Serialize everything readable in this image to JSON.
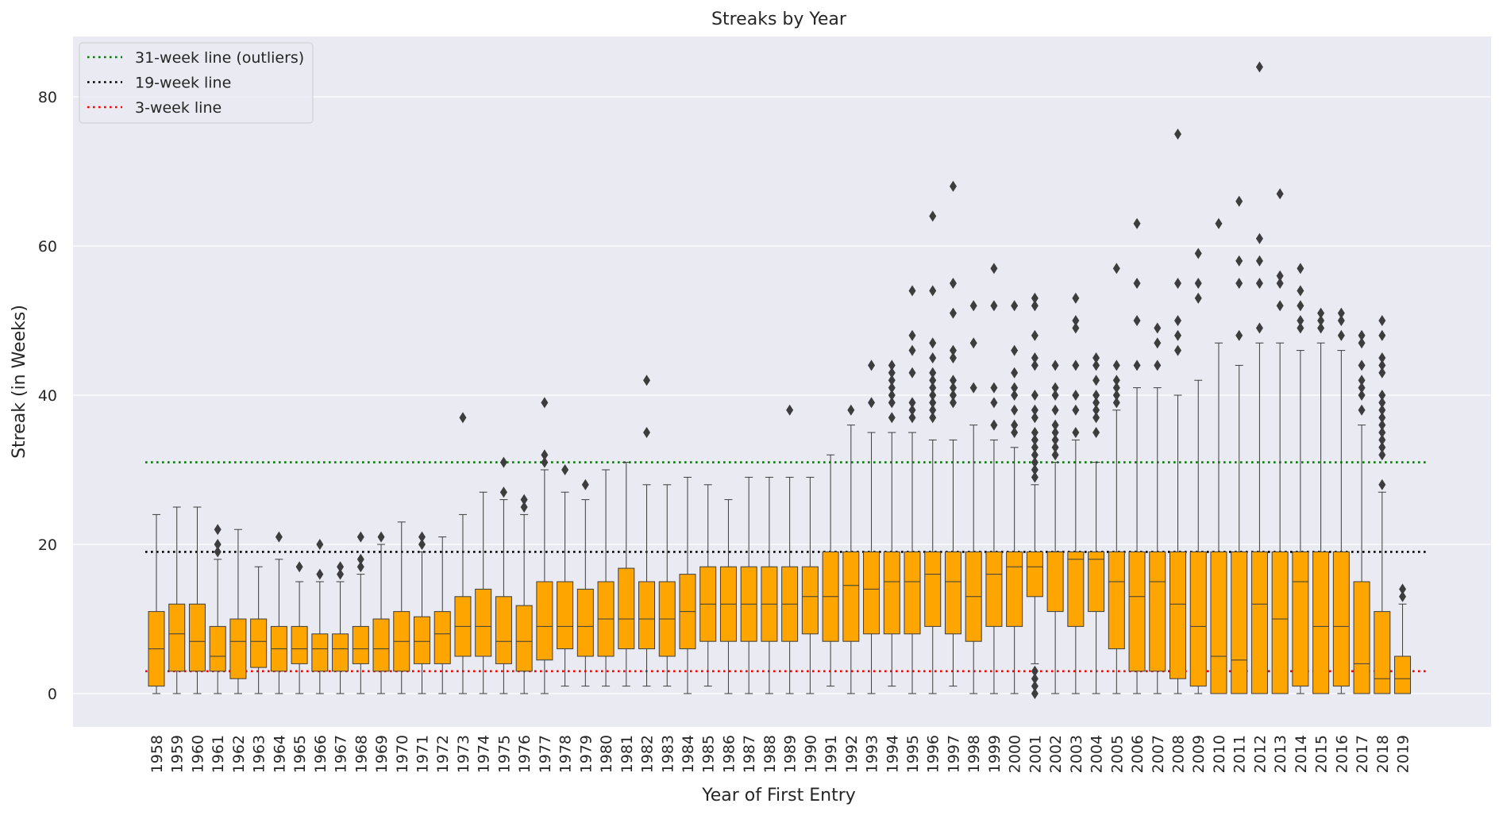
{
  "chart_data": {
    "type": "box",
    "title": "Streaks by Year",
    "xlabel": "Year of First Entry",
    "ylabel": "Streak (in Weeks)",
    "ylim": [
      -4,
      88
    ],
    "yticks": [
      0,
      20,
      40,
      60,
      80
    ],
    "grid": true,
    "legend_position": "top-left",
    "box_color": "#FFA500",
    "reference_lines": [
      {
        "label": "31-week line (outliers)",
        "y": 31,
        "color": "#008000",
        "style": "dotted"
      },
      {
        "label": "19-week line",
        "y": 19,
        "color": "#000000",
        "style": "dotted"
      },
      {
        "label": "3-week line",
        "y": 3,
        "color": "#FF0000",
        "style": "dotted"
      }
    ],
    "categories": [
      "1958",
      "1959",
      "1960",
      "1961",
      "1962",
      "1963",
      "1964",
      "1965",
      "1966",
      "1967",
      "1968",
      "1969",
      "1970",
      "1971",
      "1972",
      "1973",
      "1974",
      "1975",
      "1976",
      "1977",
      "1978",
      "1979",
      "1980",
      "1981",
      "1982",
      "1983",
      "1984",
      "1985",
      "1986",
      "1987",
      "1988",
      "1989",
      "1990",
      "1991",
      "1992",
      "1993",
      "1994",
      "1995",
      "1996",
      "1997",
      "1998",
      "1999",
      "2000",
      "2001",
      "2002",
      "2003",
      "2004",
      "2005",
      "2006",
      "2007",
      "2008",
      "2009",
      "2010",
      "2011",
      "2012",
      "2013",
      "2014",
      "2015",
      "2016",
      "2017",
      "2018",
      "2019"
    ],
    "boxes": [
      {
        "whisker_low": 0,
        "q1": 1,
        "median": 6,
        "q3": 11,
        "whisker_high": 24,
        "outliers": []
      },
      {
        "whisker_low": 0,
        "q1": 3,
        "median": 8,
        "q3": 12,
        "whisker_high": 25,
        "outliers": []
      },
      {
        "whisker_low": 0,
        "q1": 3,
        "median": 7,
        "q3": 12,
        "whisker_high": 25,
        "outliers": []
      },
      {
        "whisker_low": 0,
        "q1": 3,
        "median": 5,
        "q3": 9,
        "whisker_high": 18,
        "outliers": [
          19,
          20,
          22
        ]
      },
      {
        "whisker_low": 0,
        "q1": 2,
        "median": 7,
        "q3": 10,
        "whisker_high": 22,
        "outliers": []
      },
      {
        "whisker_low": 0,
        "q1": 3.5,
        "median": 7,
        "q3": 10,
        "whisker_high": 17,
        "outliers": []
      },
      {
        "whisker_low": 0,
        "q1": 3,
        "median": 6,
        "q3": 9,
        "whisker_high": 18,
        "outliers": [
          21
        ]
      },
      {
        "whisker_low": 0,
        "q1": 4,
        "median": 6,
        "q3": 9,
        "whisker_high": 15,
        "outliers": [
          17
        ]
      },
      {
        "whisker_low": 0,
        "q1": 3,
        "median": 6,
        "q3": 8,
        "whisker_high": 15,
        "outliers": [
          16,
          20
        ]
      },
      {
        "whisker_low": 0,
        "q1": 3,
        "median": 6,
        "q3": 8,
        "whisker_high": 15,
        "outliers": [
          16,
          17
        ]
      },
      {
        "whisker_low": 0,
        "q1": 4,
        "median": 6,
        "q3": 9,
        "whisker_high": 16,
        "outliers": [
          17,
          18,
          21
        ]
      },
      {
        "whisker_low": 0,
        "q1": 3,
        "median": 6,
        "q3": 10,
        "whisker_high": 20,
        "outliers": [
          21
        ]
      },
      {
        "whisker_low": 0,
        "q1": 3,
        "median": 7,
        "q3": 11,
        "whisker_high": 23,
        "outliers": []
      },
      {
        "whisker_low": 0,
        "q1": 4,
        "median": 7,
        "q3": 10.3,
        "whisker_high": 19,
        "outliers": [
          20,
          21
        ]
      },
      {
        "whisker_low": 0,
        "q1": 4,
        "median": 8,
        "q3": 11,
        "whisker_high": 21,
        "outliers": []
      },
      {
        "whisker_low": 0,
        "q1": 5,
        "median": 9,
        "q3": 13,
        "whisker_high": 24,
        "outliers": [
          37
        ]
      },
      {
        "whisker_low": 0,
        "q1": 5,
        "median": 9,
        "q3": 14,
        "whisker_high": 27,
        "outliers": []
      },
      {
        "whisker_low": 0,
        "q1": 4,
        "median": 7,
        "q3": 13,
        "whisker_high": 26,
        "outliers": [
          27,
          31
        ]
      },
      {
        "whisker_low": 0,
        "q1": 3,
        "median": 7,
        "q3": 11.8,
        "whisker_high": 24,
        "outliers": [
          25,
          26
        ]
      },
      {
        "whisker_low": 0,
        "q1": 4.5,
        "median": 9,
        "q3": 15,
        "whisker_high": 30,
        "outliers": [
          31,
          32,
          39
        ]
      },
      {
        "whisker_low": 1,
        "q1": 6,
        "median": 9,
        "q3": 15,
        "whisker_high": 27,
        "outliers": [
          30
        ]
      },
      {
        "whisker_low": 1,
        "q1": 5,
        "median": 9,
        "q3": 14,
        "whisker_high": 26,
        "outliers": [
          28
        ]
      },
      {
        "whisker_low": 1,
        "q1": 5,
        "median": 10,
        "q3": 15,
        "whisker_high": 30,
        "outliers": []
      },
      {
        "whisker_low": 1,
        "q1": 6,
        "median": 10,
        "q3": 16.8,
        "whisker_high": 31,
        "outliers": []
      },
      {
        "whisker_low": 1,
        "q1": 6,
        "median": 10,
        "q3": 15,
        "whisker_high": 28,
        "outliers": [
          35,
          42
        ]
      },
      {
        "whisker_low": 1,
        "q1": 5,
        "median": 10,
        "q3": 15,
        "whisker_high": 28,
        "outliers": []
      },
      {
        "whisker_low": 0,
        "q1": 6,
        "median": 11,
        "q3": 16,
        "whisker_high": 29,
        "outliers": []
      },
      {
        "whisker_low": 1,
        "q1": 7,
        "median": 12,
        "q3": 17,
        "whisker_high": 28,
        "outliers": []
      },
      {
        "whisker_low": 0,
        "q1": 7,
        "median": 12,
        "q3": 17,
        "whisker_high": 26,
        "outliers": []
      },
      {
        "whisker_low": 0,
        "q1": 7,
        "median": 12,
        "q3": 17,
        "whisker_high": 29,
        "outliers": []
      },
      {
        "whisker_low": 0,
        "q1": 7,
        "median": 12,
        "q3": 17,
        "whisker_high": 29,
        "outliers": []
      },
      {
        "whisker_low": 0,
        "q1": 7,
        "median": 12,
        "q3": 17,
        "whisker_high": 29,
        "outliers": [
          38
        ]
      },
      {
        "whisker_low": 0,
        "q1": 8,
        "median": 13,
        "q3": 17,
        "whisker_high": 29,
        "outliers": []
      },
      {
        "whisker_low": 1,
        "q1": 7,
        "median": 13,
        "q3": 19,
        "whisker_high": 32,
        "outliers": []
      },
      {
        "whisker_low": 0,
        "q1": 7,
        "median": 14.5,
        "q3": 19,
        "whisker_high": 36,
        "outliers": [
          38
        ]
      },
      {
        "whisker_low": 0,
        "q1": 8,
        "median": 14,
        "q3": 19,
        "whisker_high": 35,
        "outliers": [
          39,
          44
        ]
      },
      {
        "whisker_low": 1,
        "q1": 8,
        "median": 15,
        "q3": 19,
        "whisker_high": 35,
        "outliers": [
          37,
          39,
          40,
          41,
          42,
          43,
          44
        ]
      },
      {
        "whisker_low": 0,
        "q1": 8,
        "median": 15,
        "q3": 19,
        "whisker_high": 35,
        "outliers": [
          37,
          38,
          39,
          43,
          46,
          48,
          54
        ]
      },
      {
        "whisker_low": 0,
        "q1": 9,
        "median": 16,
        "q3": 19,
        "whisker_high": 34,
        "outliers": [
          37,
          38,
          39,
          40,
          41,
          42,
          43,
          45,
          47,
          54,
          64
        ]
      },
      {
        "whisker_low": 1,
        "q1": 8,
        "median": 15,
        "q3": 19,
        "whisker_high": 34,
        "outliers": [
          39,
          40,
          41,
          42,
          45,
          46,
          51,
          55,
          68
        ]
      },
      {
        "whisker_low": 0,
        "q1": 7,
        "median": 13,
        "q3": 19,
        "whisker_high": 36,
        "outliers": [
          41,
          47,
          52
        ]
      },
      {
        "whisker_low": 0,
        "q1": 9,
        "median": 16,
        "q3": 19,
        "whisker_high": 34,
        "outliers": [
          36,
          39,
          41,
          52,
          57
        ]
      },
      {
        "whisker_low": 0,
        "q1": 9,
        "median": 17,
        "q3": 19,
        "whisker_high": 33,
        "outliers": [
          35,
          36,
          38,
          40,
          41,
          43,
          46,
          52
        ]
      },
      {
        "whisker_low": 4,
        "q1": 13,
        "median": 17,
        "q3": 19,
        "whisker_high": 28,
        "outliers": [
          0,
          1,
          2,
          3,
          29,
          30,
          31,
          32,
          33,
          34,
          35,
          37,
          38,
          40,
          44,
          45,
          48,
          52,
          53
        ]
      },
      {
        "whisker_low": 0,
        "q1": 11,
        "median": 19,
        "q3": 19,
        "whisker_high": 31,
        "outliers": [
          32,
          33,
          34,
          35,
          36,
          38,
          40,
          41,
          44
        ]
      },
      {
        "whisker_low": 0,
        "q1": 9,
        "median": 18,
        "q3": 19,
        "whisker_high": 34,
        "outliers": [
          35,
          38,
          40,
          44,
          49,
          50,
          53
        ]
      },
      {
        "whisker_low": 0,
        "q1": 11,
        "median": 18,
        "q3": 19,
        "whisker_high": 31,
        "outliers": [
          35,
          37,
          38,
          39,
          40,
          42,
          44,
          45
        ]
      },
      {
        "whisker_low": 0,
        "q1": 6,
        "median": 15,
        "q3": 19,
        "whisker_high": 38,
        "outliers": [
          39,
          40,
          41,
          42,
          44,
          57
        ]
      },
      {
        "whisker_low": 0,
        "q1": 3,
        "median": 13,
        "q3": 19,
        "whisker_high": 41,
        "outliers": [
          44,
          50,
          55,
          63
        ]
      },
      {
        "whisker_low": 0,
        "q1": 3,
        "median": 15,
        "q3": 19,
        "whisker_high": 41,
        "outliers": [
          44,
          47,
          49
        ]
      },
      {
        "whisker_low": 0,
        "q1": 2,
        "median": 12,
        "q3": 19,
        "whisker_high": 40,
        "outliers": [
          46,
          48,
          50,
          55,
          75
        ]
      },
      {
        "whisker_low": 0,
        "q1": 1,
        "median": 9,
        "q3": 19,
        "whisker_high": 42,
        "outliers": [
          53,
          55,
          59
        ]
      },
      {
        "whisker_low": 0,
        "q1": 0,
        "median": 5,
        "q3": 19,
        "whisker_high": 47,
        "outliers": [
          63
        ]
      },
      {
        "whisker_low": 0,
        "q1": 0,
        "median": 4.5,
        "q3": 19,
        "whisker_high": 44,
        "outliers": [
          48,
          55,
          58,
          66
        ]
      },
      {
        "whisker_low": 0,
        "q1": 0,
        "median": 12,
        "q3": 19,
        "whisker_high": 47,
        "outliers": [
          49,
          55,
          58,
          61,
          84
        ]
      },
      {
        "whisker_low": 0,
        "q1": 0,
        "median": 10,
        "q3": 19,
        "whisker_high": 47,
        "outliers": [
          52,
          55,
          56,
          67
        ]
      },
      {
        "whisker_low": 0,
        "q1": 1,
        "median": 15,
        "q3": 19,
        "whisker_high": 46,
        "outliers": [
          49,
          50,
          52,
          54,
          57
        ]
      },
      {
        "whisker_low": 0,
        "q1": 0,
        "median": 9,
        "q3": 19,
        "whisker_high": 47,
        "outliers": [
          49,
          50,
          51
        ]
      },
      {
        "whisker_low": 0,
        "q1": 1,
        "median": 9,
        "q3": 19,
        "whisker_high": 46,
        "outliers": [
          48,
          50,
          51
        ]
      },
      {
        "whisker_low": 0,
        "q1": 0,
        "median": 4,
        "q3": 15,
        "whisker_high": 36,
        "outliers": [
          38,
          40,
          41,
          42,
          44,
          47,
          48
        ]
      },
      {
        "whisker_low": 0,
        "q1": 0,
        "median": 2,
        "q3": 11,
        "whisker_high": 27,
        "outliers": [
          28,
          32,
          33,
          34,
          35,
          36,
          37,
          38,
          39,
          40,
          43,
          44,
          45,
          48,
          50
        ]
      },
      {
        "whisker_low": 0,
        "q1": 0,
        "median": 2,
        "q3": 5,
        "whisker_high": 12,
        "outliers": [
          13,
          14
        ]
      }
    ]
  }
}
